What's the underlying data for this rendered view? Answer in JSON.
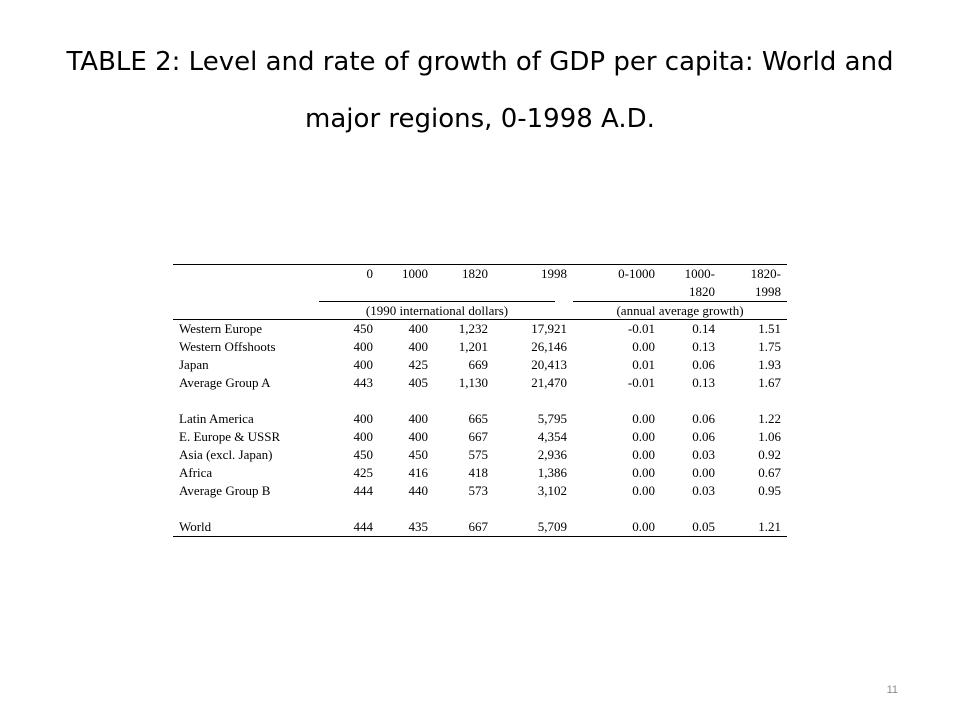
{
  "slide": {
    "title": "TABLE 2: Level and rate of growth of GDP per capita: World and major regions, 0-1998 A.D.",
    "page_number": "11"
  },
  "table": {
    "header1": [
      "",
      "0",
      "1000",
      "1820",
      "1998",
      "0-1000",
      "1000-",
      "1820-"
    ],
    "header2": [
      "",
      "",
      "",
      "",
      "",
      "",
      "1820",
      "1998"
    ],
    "units_level": "(1990 international dollars)",
    "units_growth": "(annual average growth)",
    "groups": [
      [
        {
          "region": "Western Europe",
          "values": [
            "450",
            "400",
            "1,232",
            "17,921",
            "-0.01",
            "0.14",
            "1.51"
          ]
        },
        {
          "region": "Western Offshoots",
          "values": [
            "400",
            "400",
            "1,201",
            "26,146",
            "0.00",
            "0.13",
            "1.75"
          ]
        },
        {
          "region": "Japan",
          "values": [
            "400",
            "425",
            "669",
            "20,413",
            "0.01",
            "0.06",
            "1.93"
          ]
        },
        {
          "region": "Average Group A",
          "values": [
            "443",
            "405",
            "1,130",
            "21,470",
            "-0.01",
            "0.13",
            "1.67"
          ]
        }
      ],
      [
        {
          "region": "Latin America",
          "values": [
            "400",
            "400",
            "665",
            "5,795",
            "0.00",
            "0.06",
            "1.22"
          ]
        },
        {
          "region": "E. Europe & USSR",
          "values": [
            "400",
            "400",
            "667",
            "4,354",
            "0.00",
            "0.06",
            "1.06"
          ]
        },
        {
          "region": "Asia (excl. Japan)",
          "values": [
            "450",
            "450",
            "575",
            "2,936",
            "0.00",
            "0.03",
            "0.92"
          ]
        },
        {
          "region": "Africa",
          "values": [
            "425",
            "416",
            "418",
            "1,386",
            "0.00",
            "0.00",
            "0.67"
          ]
        },
        {
          "region": "Average Group B",
          "values": [
            "444",
            "440",
            "573",
            "3,102",
            "0.00",
            "0.03",
            "0.95"
          ]
        }
      ],
      [
        {
          "region": "World",
          "values": [
            "444",
            "435",
            "667",
            "5,709",
            "0.00",
            "0.05",
            "1.21"
          ]
        }
      ]
    ]
  }
}
